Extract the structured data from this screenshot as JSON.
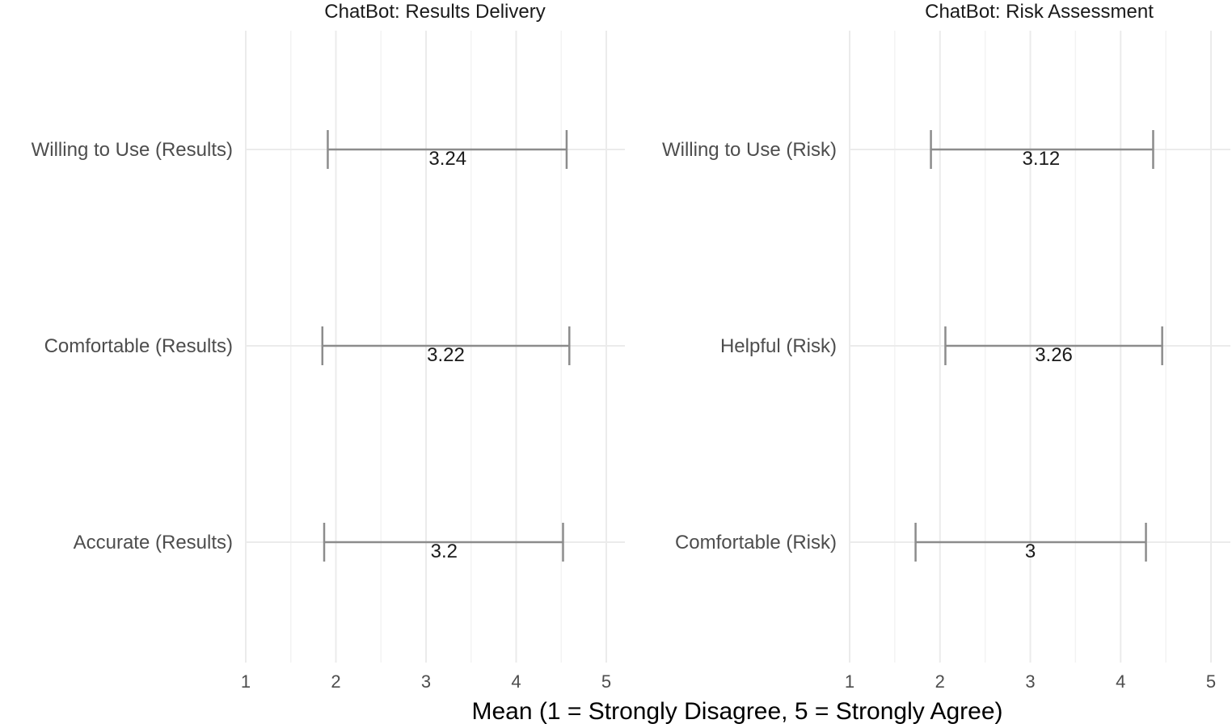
{
  "chart_data": [
    {
      "type": "errorbar",
      "title": "ChatBot: Results Delivery",
      "xlabel": "Mean (1 = Strongly Disagree, 5 = Strongly Agree)",
      "ylabel": "",
      "xlim": [
        1,
        5
      ],
      "xticks": [
        1,
        2,
        3,
        4,
        5
      ],
      "grid": true,
      "categories": [
        "Willing to Use (Results)",
        "Comfortable (Results)",
        "Accurate (Results)"
      ],
      "means": [
        3.24,
        3.22,
        3.2
      ],
      "mean_labels": [
        "3.24",
        "3.22",
        "3.2"
      ],
      "lower": [
        1.91,
        1.85,
        1.87
      ],
      "upper": [
        4.56,
        4.59,
        4.52
      ]
    },
    {
      "type": "errorbar",
      "title": "ChatBot: Risk Assessment",
      "xlabel": "Mean (1 = Strongly Disagree, 5 = Strongly Agree)",
      "ylabel": "",
      "xlim": [
        1,
        5
      ],
      "xticks": [
        1,
        2,
        3,
        4,
        5
      ],
      "grid": true,
      "categories": [
        "Willing to Use (Risk)",
        "Helpful (Risk)",
        "Comfortable (Risk)"
      ],
      "means": [
        3.12,
        3.26,
        3
      ],
      "mean_labels": [
        "3.12",
        "3.26",
        "3"
      ],
      "lower": [
        1.9,
        2.06,
        1.73
      ],
      "upper": [
        4.36,
        4.46,
        4.28
      ]
    }
  ],
  "shared": {
    "x_axis_title": "Mean (1 = Strongly Disagree, 5 = Strongly Agree)",
    "tick_labels": [
      "1",
      "2",
      "3",
      "4",
      "5"
    ]
  },
  "colors": {
    "errorbar": "#8c8c8c",
    "grid": "#ebebeb",
    "text": "#4d4d4d"
  }
}
